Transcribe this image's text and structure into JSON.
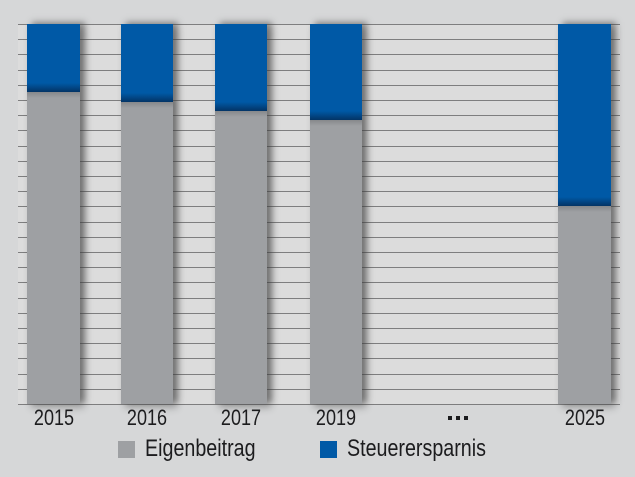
{
  "chart_data": {
    "type": "bar",
    "stacked": true,
    "title": "",
    "categories": [
      "2015",
      "2016",
      "2017",
      "2019",
      "...",
      "2025"
    ],
    "series": [
      {
        "name": "Eigenbeitrag",
        "color": "#9ea0a3",
        "values": [
          82.0,
          79.6,
          77.2,
          74.8,
          null,
          52.2
        ]
      },
      {
        "name": "Steuerersparnis",
        "color": "#0059a6",
        "values": [
          18.0,
          20.4,
          22.8,
          25.2,
          null,
          47.8
        ]
      }
    ],
    "value_unit": "percent of constant total bar height",
    "ylim": [
      0,
      100
    ],
    "y_axis_labels_visible": false,
    "grid": {
      "horizontal_lines": 26,
      "vertical_lines": 0
    },
    "legend_position": "bottom",
    "skipped_years_marker": "..."
  },
  "legend": {
    "items": [
      {
        "label": "Eigenbeitrag",
        "color": "#9ea0a3"
      },
      {
        "label": "Steuerersparnis",
        "color": "#0059a6"
      }
    ]
  },
  "colors": {
    "background": "#d6d7d8",
    "plot_background": "#dcdcdc",
    "gridline": "#6d6d6e",
    "bar_gray": "#9ea0a3",
    "bar_blue": "#0059a6",
    "text": "#1c1c1e"
  }
}
